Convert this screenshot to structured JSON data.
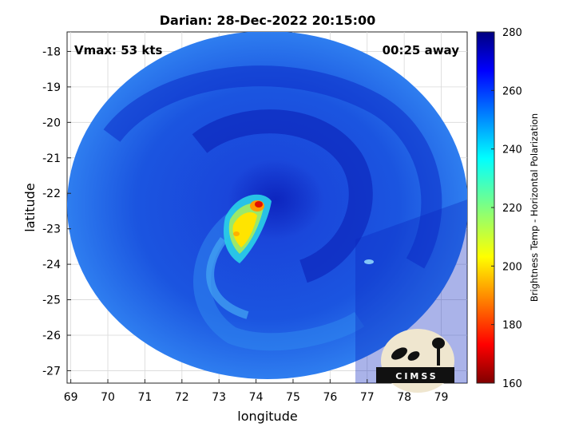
{
  "title": "Darian: 28-Dec-2022 20:15:00",
  "vmax_label": "Vmax: 53 kts",
  "away_label": "00:25 away",
  "xlabel": "longitude",
  "ylabel": "latitude",
  "colorbar_label": "Brightness Temp - Horizontal Polarization",
  "logo_text": "CIMSS",
  "x_ticks": [
    "69",
    "70",
    "71",
    "72",
    "73",
    "74",
    "75",
    "76",
    "77",
    "78",
    "79"
  ],
  "y_ticks": [
    "-18",
    "-19",
    "-20",
    "-21",
    "-22",
    "-23",
    "-24",
    "-25",
    "-26",
    "-27"
  ],
  "colorbar_ticks": [
    "280",
    "260",
    "240",
    "220",
    "200",
    "180",
    "160"
  ],
  "map_extent": {
    "lon": [
      68.9,
      79.7
    ],
    "lat": [
      -27.35,
      -17.45
    ]
  },
  "colorbar_range": [
    160,
    280
  ],
  "colormap": "jet",
  "colors": {
    "cold_low": "#0a24c8",
    "cold_mid": "#1e5ae6",
    "cyan": "#10c8f0",
    "yellow": "#ffe800",
    "red": "#e01000",
    "dark_red": "#800000",
    "navy": "#00007f"
  },
  "storm_center": {
    "lon": 74.1,
    "lat": -22.4
  },
  "swath_center": {
    "lon": 74.1,
    "lat": -22.55
  }
}
